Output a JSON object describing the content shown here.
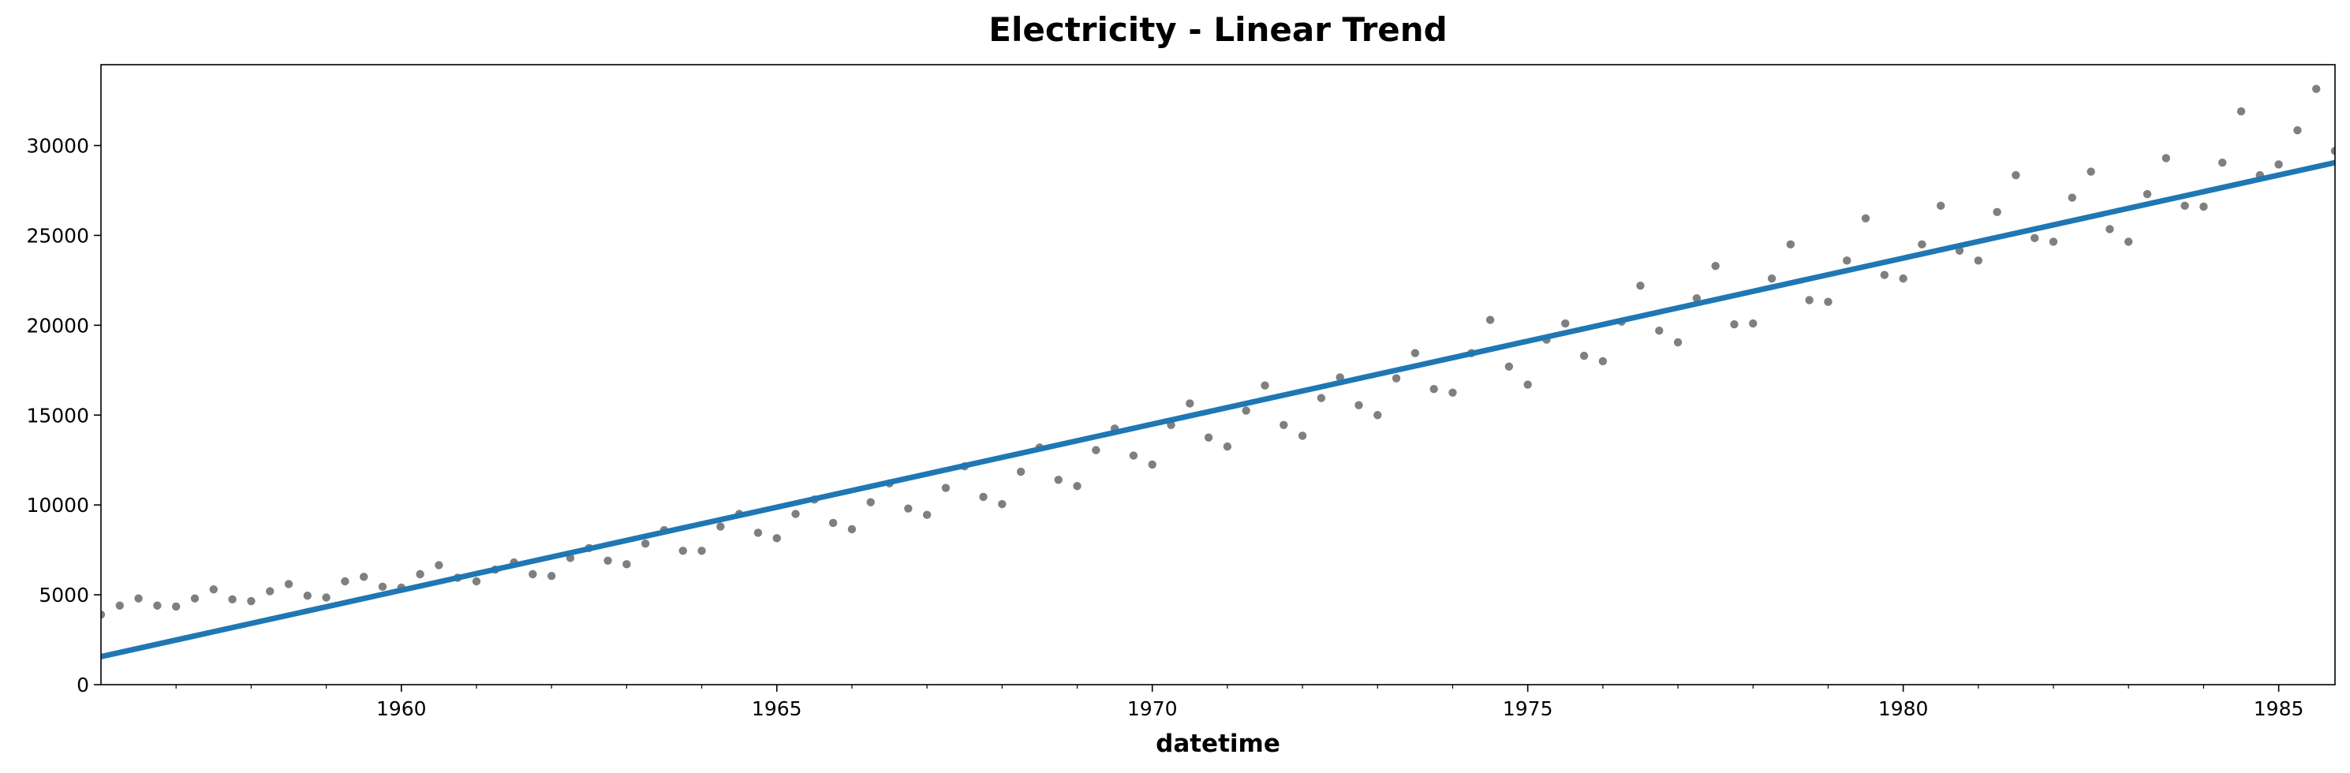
{
  "chart_data": {
    "type": "scatter",
    "title": "Electricity - Linear Trend",
    "xlabel": "datetime",
    "ylabel": "",
    "xlim": [
      1956.0,
      1985.75
    ],
    "ylim": [
      0,
      34500
    ],
    "grid": false,
    "x_major_ticks": [
      1960,
      1965,
      1970,
      1975,
      1980,
      1985
    ],
    "x_tick_labels": [
      "1960",
      "1965",
      "1970",
      "1975",
      "1980",
      "1985"
    ],
    "x_minor_ticks": [
      1957,
      1958,
      1959,
      1961,
      1962,
      1963,
      1964,
      1966,
      1967,
      1968,
      1969,
      1971,
      1972,
      1973,
      1974,
      1976,
      1977,
      1978,
      1979,
      1981,
      1982,
      1983,
      1984
    ],
    "y_ticks": [
      0,
      5000,
      10000,
      15000,
      20000,
      25000,
      30000
    ],
    "y_tick_labels": [
      "0",
      "5000",
      "10000",
      "15000",
      "20000",
      "25000",
      "30000"
    ],
    "colors": {
      "points": "#7f7f7f",
      "trend": "#1f77b4"
    },
    "series": [
      {
        "kind": "points",
        "x_start": 1956.0,
        "x_step": 0.25,
        "values": [
          3900,
          4400,
          4800,
          4400,
          4350,
          4800,
          5300,
          4750,
          4650,
          5200,
          5600,
          4950,
          4850,
          5750,
          6000,
          5450,
          5400,
          6150,
          6650,
          5950,
          5750,
          6400,
          6800,
          6150,
          6050,
          7050,
          7600,
          6900,
          6700,
          7850,
          8600,
          7450,
          7450,
          8800,
          9500,
          8450,
          8150,
          9500,
          10300,
          9000,
          8650,
          10150,
          11200,
          9800,
          9450,
          10950,
          12150,
          10450,
          10050,
          11850,
          13200,
          11400,
          11050,
          13050,
          14250,
          12750,
          12250,
          14450,
          15650,
          13750,
          13250,
          15250,
          16650,
          14450,
          13850,
          15950,
          17100,
          15550,
          15000,
          17050,
          18450,
          16450,
          16250,
          18450,
          20300,
          17700,
          16700,
          19200,
          20100,
          18300,
          18000,
          20200,
          22200,
          19700,
          19050,
          21500,
          23300,
          20050,
          20100,
          22600,
          24500,
          21400,
          21300,
          23600,
          25950,
          22800,
          22600,
          24500,
          26650,
          24150,
          23600,
          26300,
          28350,
          24850,
          24650,
          27100,
          28550,
          25350,
          24650,
          27300,
          29300,
          26650,
          26600,
          29050,
          31900,
          28350,
          28950,
          30850,
          33150,
          29700
        ]
      },
      {
        "kind": "line",
        "name": "",
        "x": [
          1956.0,
          1985.75
        ],
        "values": [
          1560,
          29050
        ]
      }
    ]
  }
}
